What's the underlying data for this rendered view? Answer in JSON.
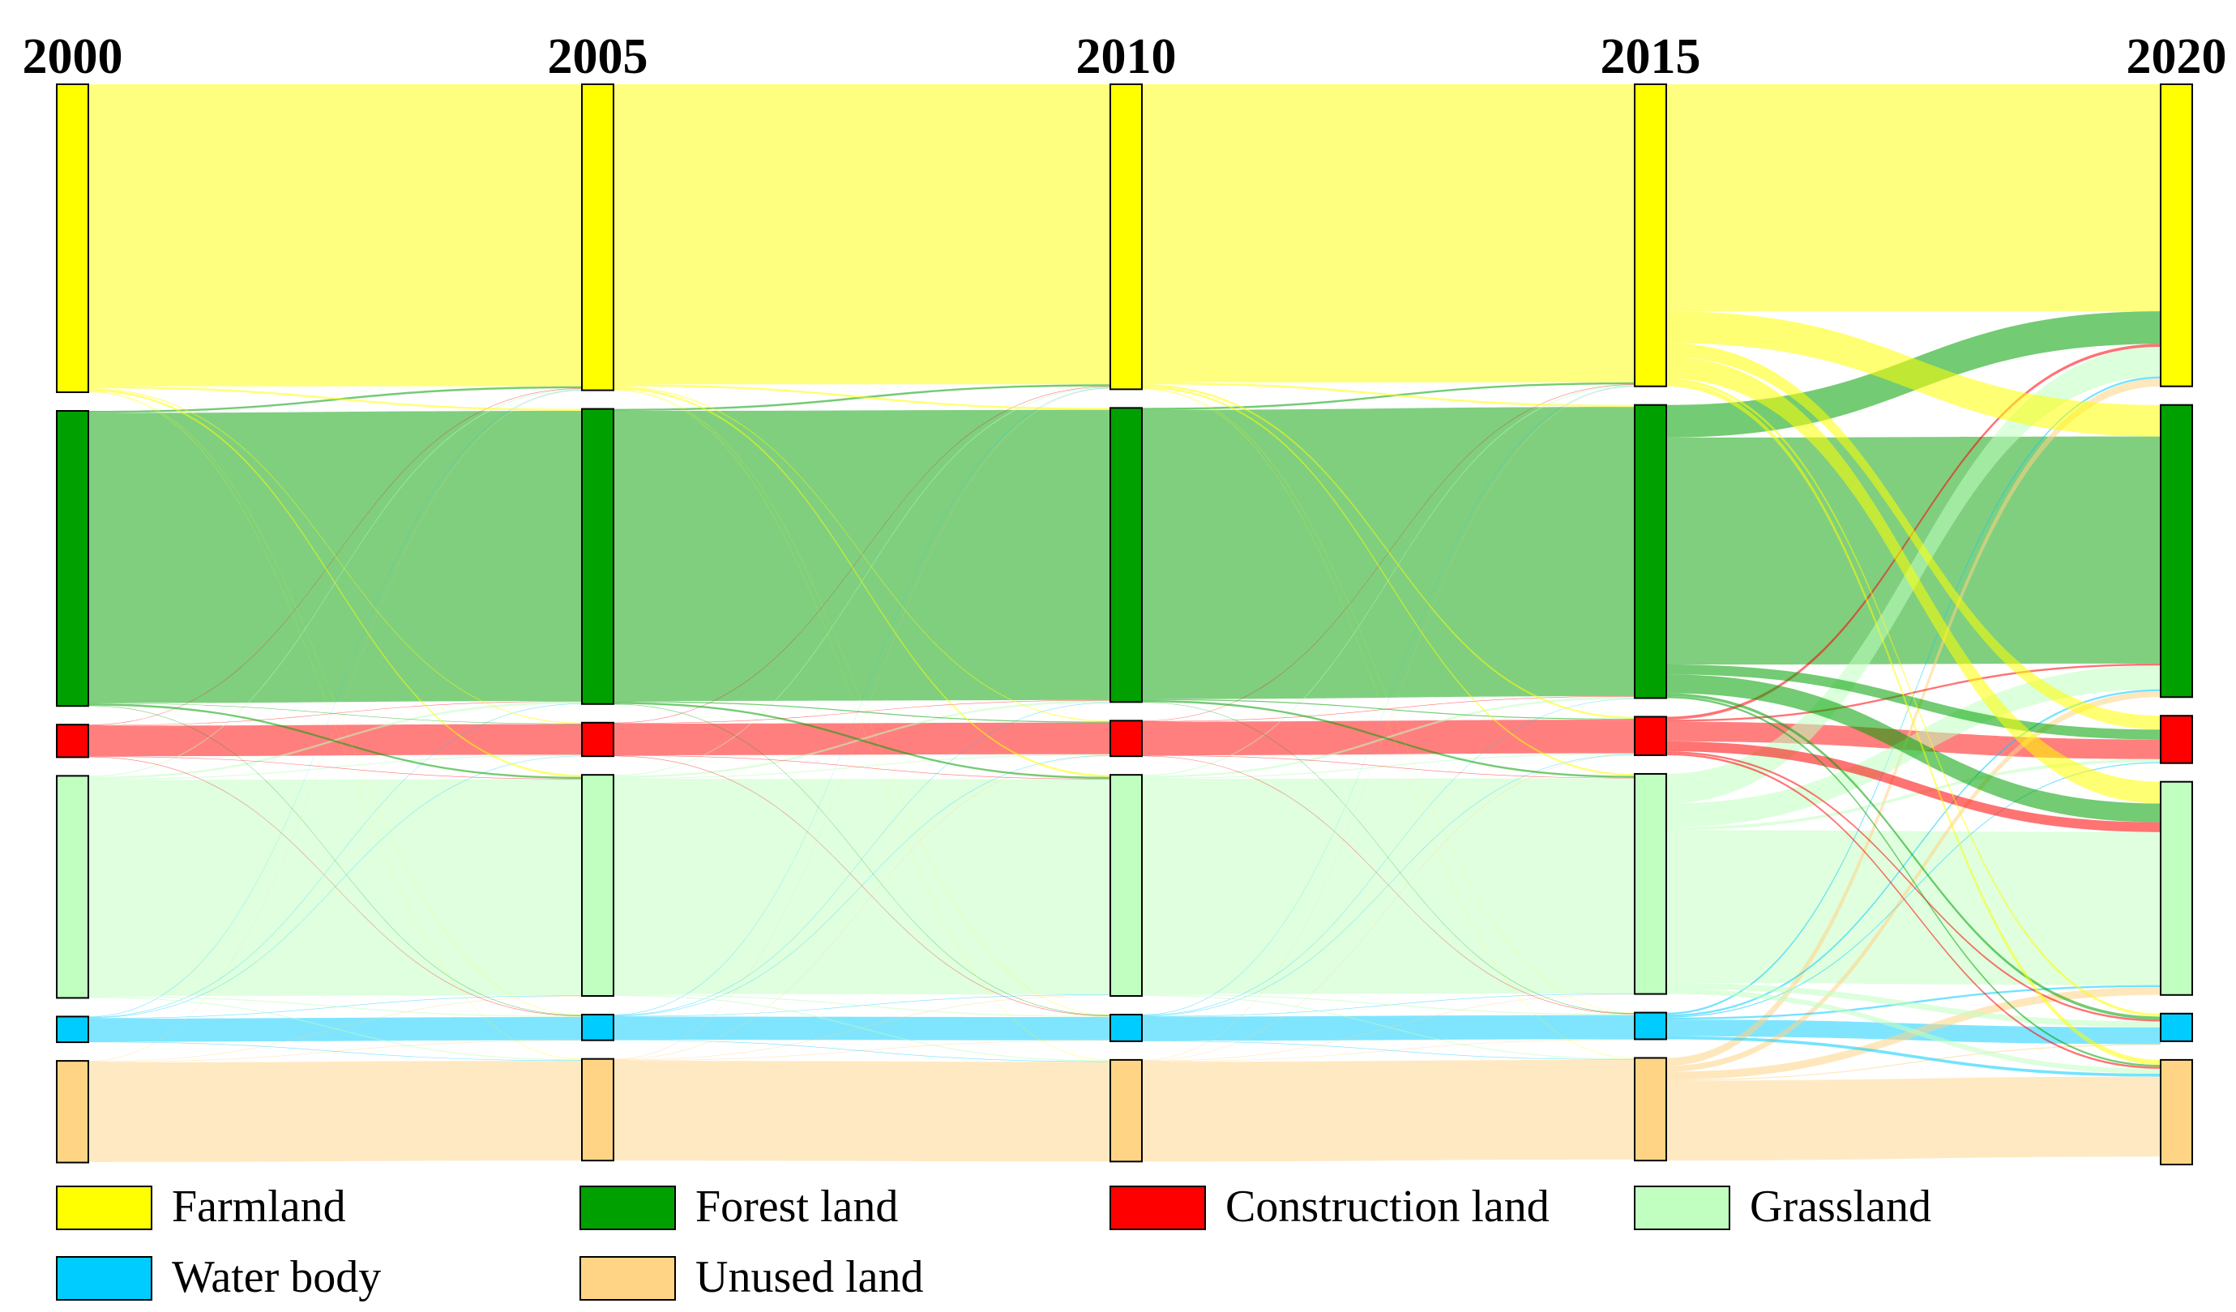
{
  "chart_data": {
    "type": "sankey",
    "columns": [
      "2000",
      "2005",
      "2010",
      "2015",
      "2020"
    ],
    "categories": [
      "Farmland",
      "Forest land",
      "Construction land",
      "Grassland",
      "Water body",
      "Unused land"
    ],
    "colors": [
      "#ffff00",
      "#00a000",
      "#ff0000",
      "#c0ffc0",
      "#00ccff",
      "#ffd485"
    ],
    "nodes": [
      [
        31.2,
        29.9,
        3.3,
        22.5,
        2.6,
        10.3
      ],
      [
        31.0,
        29.9,
        3.4,
        22.4,
        2.6,
        10.3
      ],
      [
        30.9,
        29.8,
        3.6,
        22.4,
        2.7,
        10.3
      ],
      [
        30.6,
        29.7,
        3.9,
        22.3,
        2.7,
        10.4
      ],
      [
        30.6,
        29.6,
        4.8,
        21.6,
        2.8,
        10.6
      ]
    ],
    "links": [
      [
        [
          30.6,
          0.2,
          0.1,
          0.2,
          0.05,
          0.05
        ],
        [
          0.2,
          29.4,
          0.05,
          0.2,
          0.05,
          0
        ],
        [
          0.05,
          0.05,
          3.1,
          0.05,
          0.05,
          0
        ],
        [
          0.1,
          0.2,
          0.1,
          21.9,
          0.1,
          0.1
        ],
        [
          0.05,
          0.05,
          0.05,
          0.05,
          2.35,
          0.05
        ],
        [
          0.05,
          0,
          0,
          0.05,
          0.05,
          10.1
        ]
      ],
      [
        [
          30.4,
          0.2,
          0.1,
          0.2,
          0.05,
          0.05
        ],
        [
          0.2,
          29.4,
          0.1,
          0.2,
          0.05,
          0
        ],
        [
          0.05,
          0.05,
          3.2,
          0.05,
          0.05,
          0
        ],
        [
          0.1,
          0.2,
          0.1,
          21.8,
          0.1,
          0.1
        ],
        [
          0.05,
          0.05,
          0.05,
          0.05,
          2.35,
          0.05
        ],
        [
          0.05,
          0,
          0.05,
          0.05,
          0.05,
          10.1
        ]
      ],
      [
        [
          30.2,
          0.2,
          0.2,
          0.2,
          0.05,
          0.05
        ],
        [
          0.2,
          29.3,
          0.1,
          0.2,
          0.05,
          0
        ],
        [
          0.05,
          0.05,
          3.4,
          0.05,
          0.05,
          0
        ],
        [
          0.1,
          0.2,
          0.1,
          21.8,
          0.1,
          0.1
        ],
        [
          0.05,
          0.05,
          0.05,
          0.05,
          2.45,
          0.05
        ],
        [
          0.05,
          0,
          0.05,
          0.05,
          0.05,
          10.1
        ]
      ],
      [
        [
          23.0,
          3.2,
          1.4,
          2.2,
          0.3,
          0.5
        ],
        [
          3.3,
          23.0,
          1.0,
          1.9,
          0.3,
          0.2
        ],
        [
          0.3,
          0.2,
          2.0,
          1.0,
          0.2,
          0.2
        ],
        [
          3.0,
          2.4,
          0.3,
          15.5,
          0.6,
          0.5
        ],
        [
          0.2,
          0.2,
          0.1,
          0.2,
          1.7,
          0.3
        ],
        [
          0.8,
          0.6,
          0,
          0.8,
          0.1,
          8.1
        ]
      ]
    ]
  }
}
